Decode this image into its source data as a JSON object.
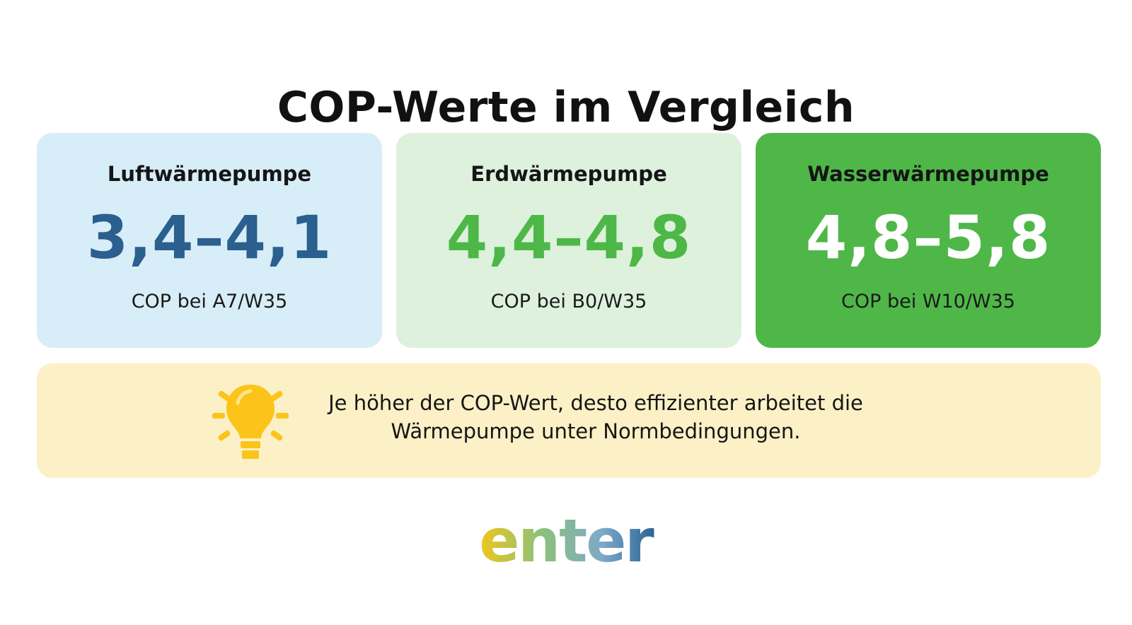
{
  "title": "COP-Werte im Vergleich",
  "cards": [
    {
      "name": "Luftwärmepumpe",
      "value": "3,4–4,1",
      "subtitle": "COP bei A7/W35"
    },
    {
      "name": "Erdwärmepumpe",
      "value": "4,4–4,8",
      "subtitle": "COP bei B0/W35"
    },
    {
      "name": "Wasserwärmepumpe",
      "value": "4,8–5,8",
      "subtitle": "COP bei W10/W35"
    }
  ],
  "tip": {
    "icon": "lightbulb-icon",
    "line1": "Je höher der COP-Wert, desto effizienter arbeitet die",
    "line2": "Wärmepumpe unter Normbedingungen."
  },
  "logo": {
    "text": "enter"
  },
  "colors": {
    "card1_bg": "#d7edf7",
    "card1_value": "#2a5f8e",
    "card2_bg": "#ddf1dc",
    "card2_value": "#4db847",
    "card3_bg": "#4fb748",
    "card3_value": "#ffffff",
    "tip_bg": "#fcf0c6",
    "bulb": "#fcc419"
  }
}
